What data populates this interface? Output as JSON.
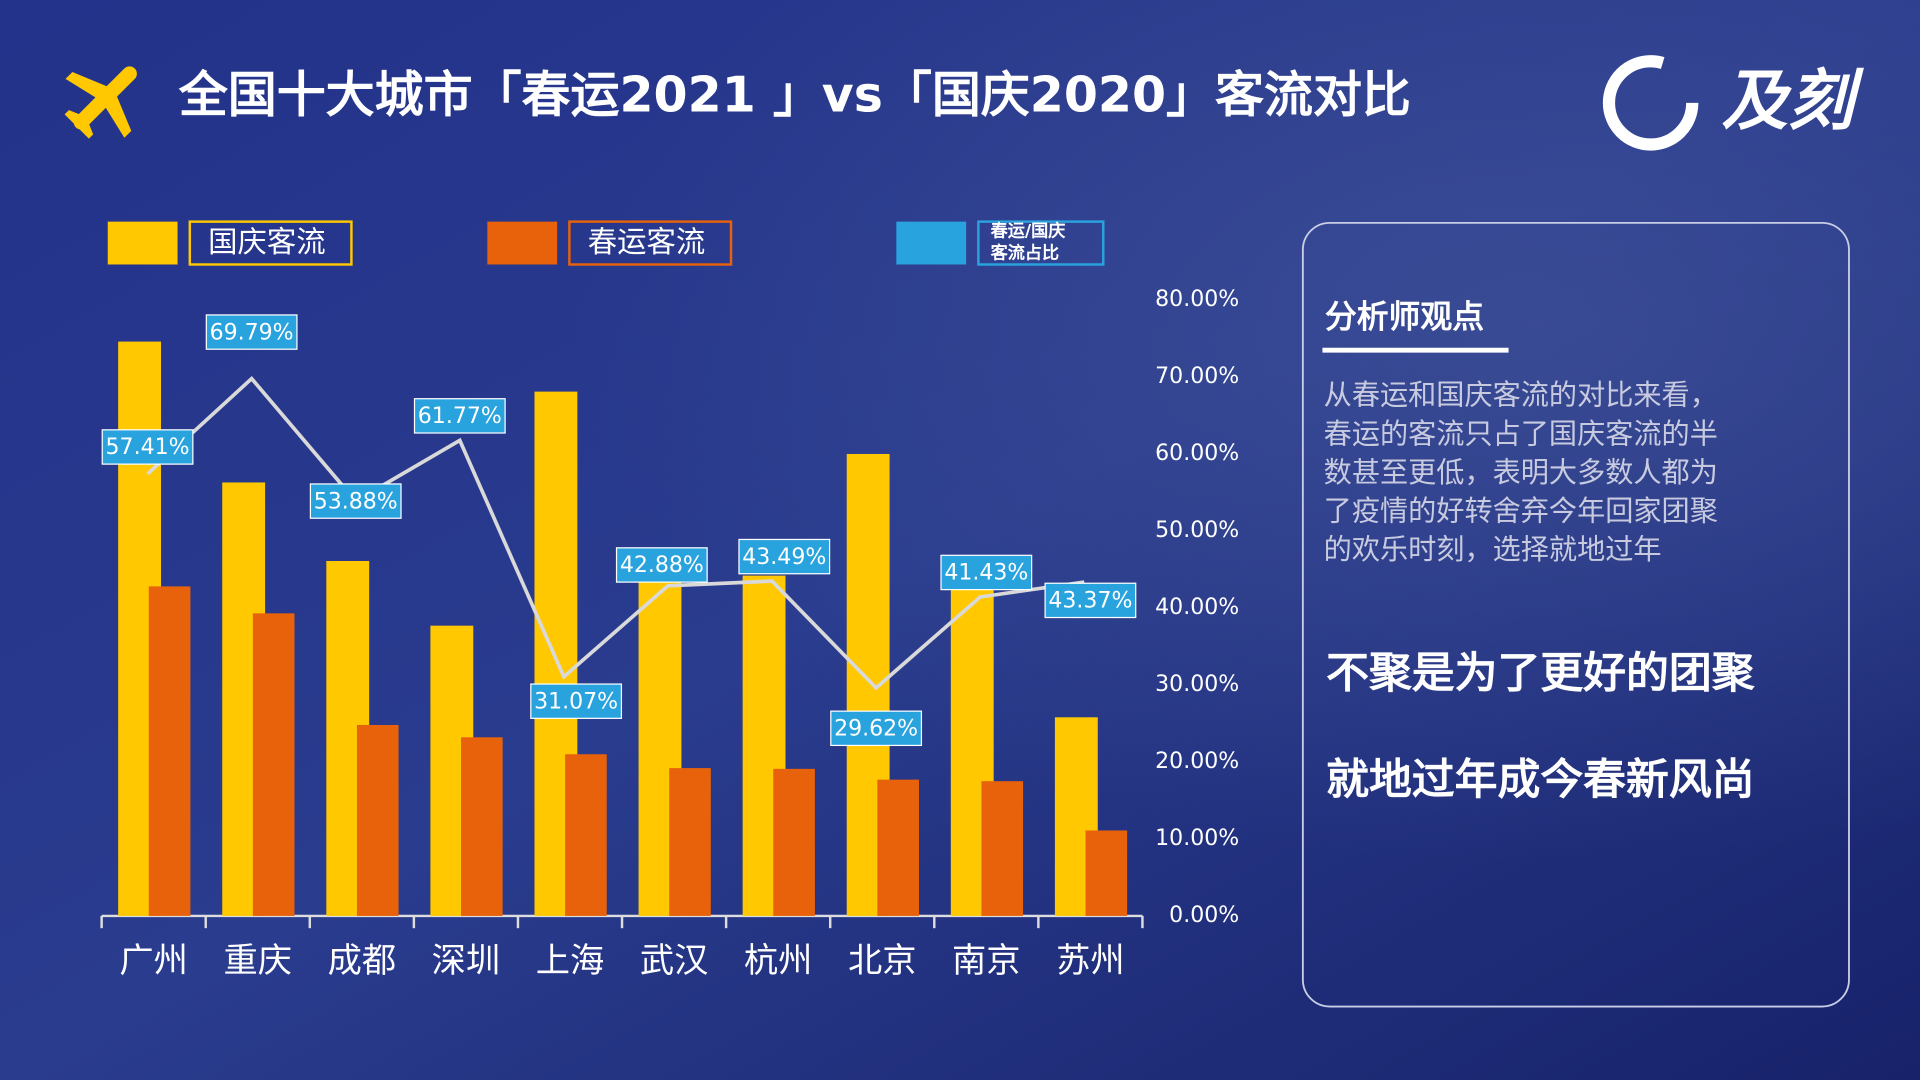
{
  "chart_data": {
    "type": "bar-line",
    "title": "全国十大城市「春运2021 」vs「国庆2020」客流对比",
    "categories": [
      "广州",
      "重庆",
      "成都",
      "深圳",
      "上海",
      "武汉",
      "杭州",
      "北京",
      "南京",
      "苏州"
    ],
    "series": [
      {
        "name": "国庆客流",
        "type": "bar",
        "color": "#ffc800",
        "values": [
          74.6,
          56.3,
          46.1,
          37.7,
          68.1,
          45.0,
          44.2,
          60.0,
          42.5,
          25.8
        ]
      },
      {
        "name": "春运客流",
        "type": "bar",
        "color": "#e8620c",
        "values": [
          42.8,
          39.3,
          24.8,
          23.2,
          21.0,
          19.2,
          19.1,
          17.7,
          17.5,
          11.1
        ]
      },
      {
        "name": "春运/国庆客流占比",
        "type": "line",
        "color": "#29a3de",
        "line_color": "#d9d9d9",
        "values": [
          57.41,
          69.79,
          53.88,
          61.77,
          31.07,
          42.88,
          43.49,
          29.62,
          41.43,
          43.37
        ],
        "value_labels": [
          "57.41%",
          "69.79%",
          "53.88%",
          "61.77%",
          "31.07%",
          "42.88%",
          "43.49%",
          "29.62%",
          "41.43%",
          "43.37%"
        ]
      }
    ],
    "ylim": [
      0,
      80
    ],
    "yticks": [
      {
        "value": 0,
        "label": "0.00%"
      },
      {
        "value": 10,
        "label": "10.00%"
      },
      {
        "value": 20,
        "label": "20.00%"
      },
      {
        "value": 30,
        "label": "30.00%"
      },
      {
        "value": 40,
        "label": "40.00%"
      },
      {
        "value": 50,
        "label": "50.00%"
      },
      {
        "value": 60,
        "label": "60.00%"
      },
      {
        "value": 70,
        "label": "70.00%"
      },
      {
        "value": 80,
        "label": "80.00%"
      }
    ]
  },
  "logo": "及刻",
  "panel": {
    "heading": "分析师观点",
    "paragraph": [
      "从春运和国庆客流的对比来看，",
      "春运的客流只占了国庆客流的半",
      "数甚至更低，表明大多数人都为",
      "了疫情的好转舍弃今年回家团聚",
      "的欢乐时刻，选择就地过年"
    ],
    "slogans": [
      "不聚是为了更好的团聚",
      "就地过年成今春新风尚"
    ]
  }
}
